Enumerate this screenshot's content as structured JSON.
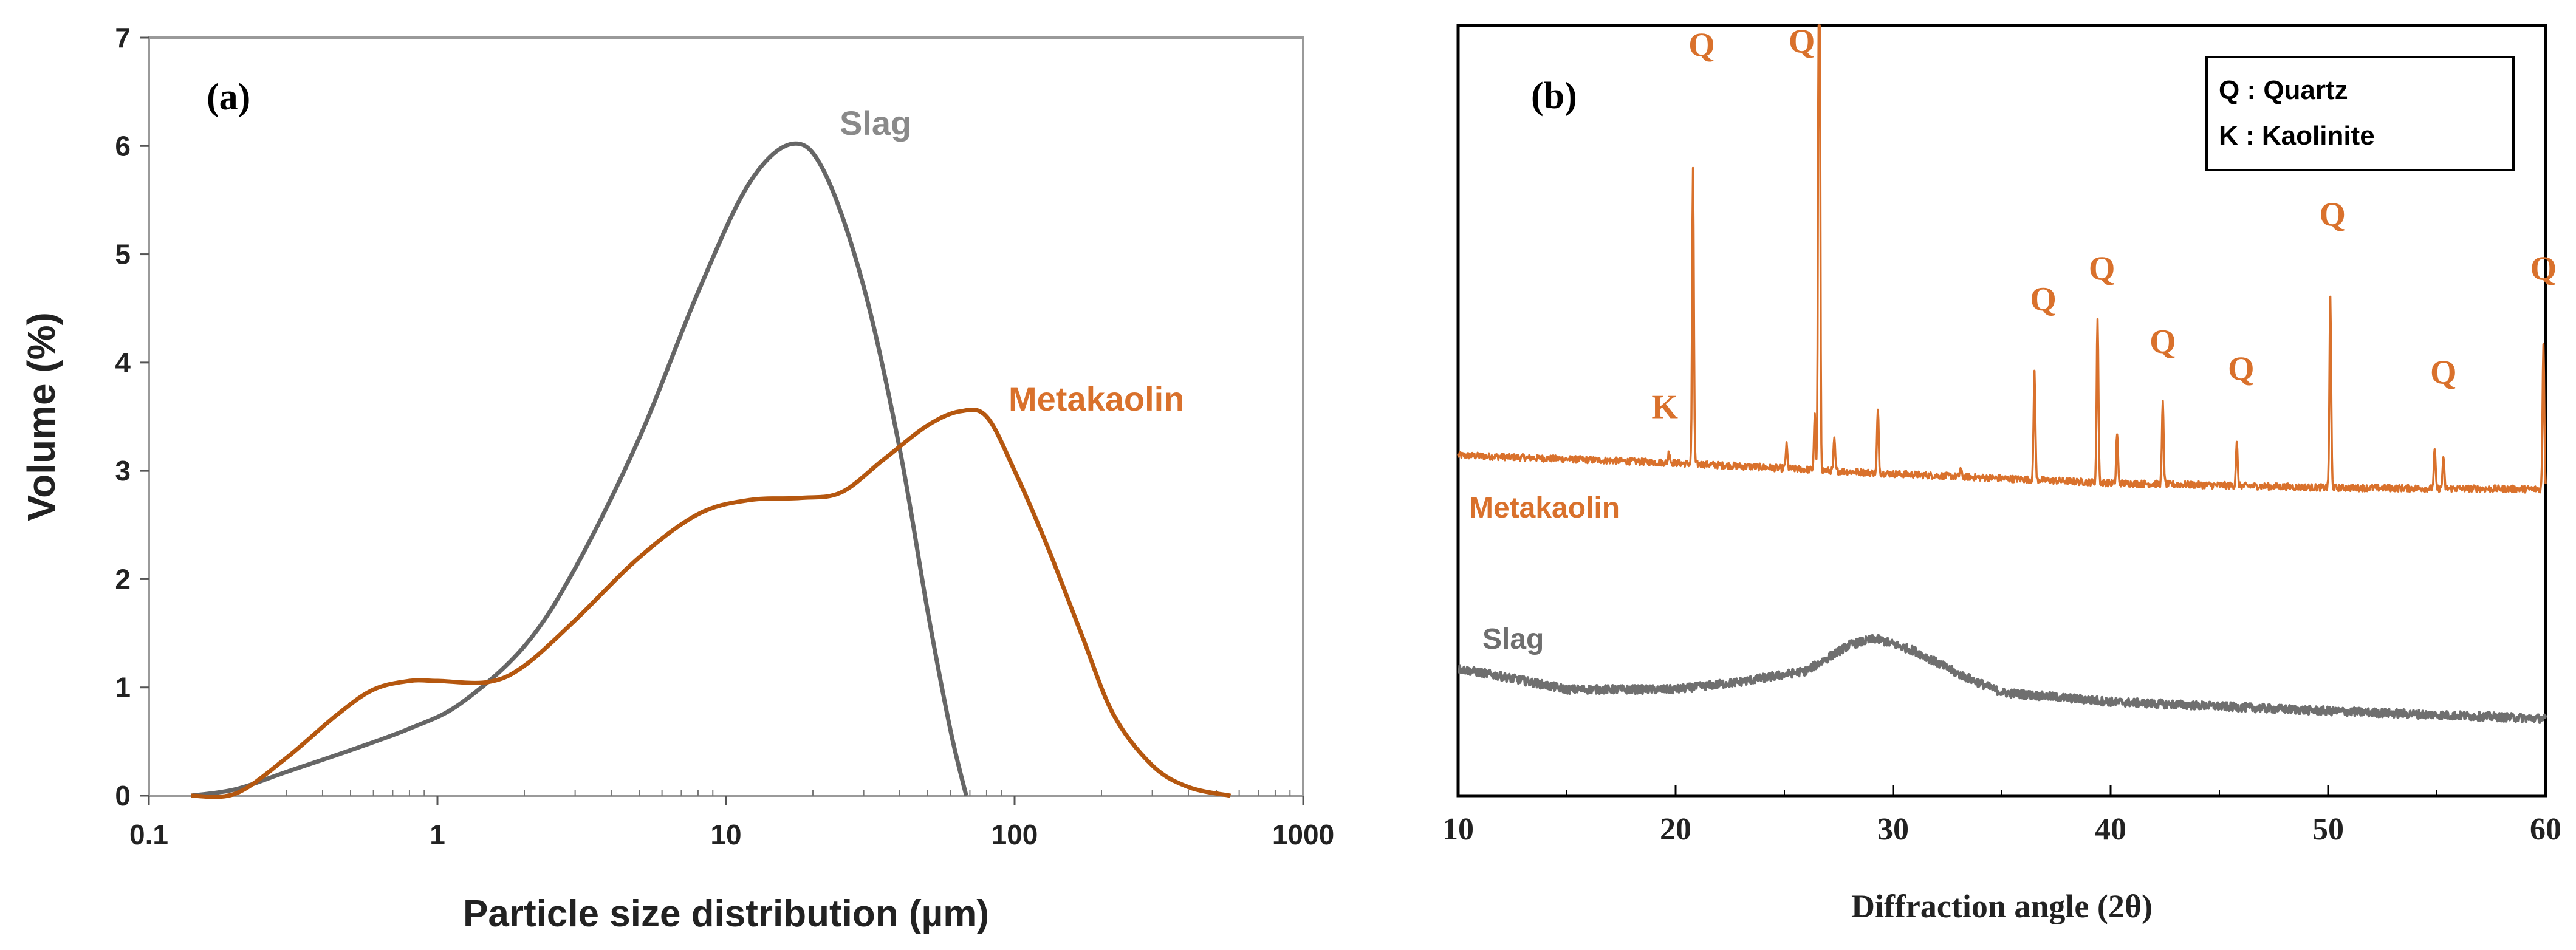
{
  "chart_data": [
    {
      "type": "line",
      "panel_label": "(a)",
      "xlabel": "Particle size distribution (µm)",
      "ylabel": "Volume (%)",
      "xscale": "log",
      "xlim": [
        0.1,
        1000
      ],
      "ylim": [
        0,
        7
      ],
      "x_ticks": [
        0.1,
        1,
        10,
        100,
        1000
      ],
      "x_tick_labels": [
        "0.1",
        "1",
        "10",
        "100",
        "1000"
      ],
      "y_ticks": [
        0,
        1,
        2,
        3,
        4,
        5,
        6,
        7
      ],
      "y_tick_labels": [
        "0",
        "1",
        "2",
        "3",
        "4",
        "5",
        "6",
        "7"
      ],
      "grid": false,
      "colors": {
        "Slag": "#666666",
        "Metakaolin": "#b5570f",
        "Slag_label": "#8a8a8a",
        "Metakaolin_label": "#d9712c"
      },
      "series": [
        {
          "name": "Slag",
          "x": [
            0.14,
            0.2,
            0.3,
            0.5,
            0.8,
            1.2,
            2,
            3,
            5,
            8,
            12,
            17,
            22,
            30,
            40,
            50,
            60,
            68
          ],
          "y": [
            0,
            0.06,
            0.22,
            0.42,
            0.62,
            0.85,
            1.38,
            2.1,
            3.3,
            4.65,
            5.65,
            6.02,
            5.75,
            4.7,
            3.2,
            1.7,
            0.6,
            0
          ]
        },
        {
          "name": "Metakaolin",
          "x": [
            0.14,
            0.2,
            0.3,
            0.45,
            0.6,
            0.8,
            1.0,
            1.5,
            2,
            3,
            5,
            8,
            12,
            18,
            25,
            35,
            50,
            65,
            80,
            100,
            130,
            170,
            220,
            300,
            400,
            560
          ],
          "y": [
            0,
            0.02,
            0.35,
            0.75,
            0.98,
            1.06,
            1.06,
            1.05,
            1.2,
            1.62,
            2.2,
            2.6,
            2.73,
            2.75,
            2.8,
            3.1,
            3.42,
            3.55,
            3.5,
            3.0,
            2.3,
            1.5,
            0.75,
            0.28,
            0.08,
            0
          ]
        }
      ],
      "annotations": [
        "Slag",
        "Metakaolin"
      ]
    },
    {
      "type": "line",
      "panel_label": "(b)",
      "xlabel": "Diffraction angle (2θ)",
      "ylabel": "",
      "xlim": [
        10,
        60
      ],
      "x_ticks": [
        10,
        20,
        30,
        40,
        50,
        60
      ],
      "x_tick_labels": [
        "10",
        "20",
        "30",
        "40",
        "50",
        "60"
      ],
      "y_units": "relative intensity (no axis labels)",
      "ylim": [
        0,
        100
      ],
      "grid": false,
      "legend": {
        "position": "top-right",
        "lines": [
          "Q : Quartz",
          "K : Kaolinite"
        ]
      },
      "colors": {
        "Metakaolin": "#d9712c",
        "Slag": "#6f6f6f"
      },
      "series": [
        {
          "name": "Metakaolin",
          "baseline": [
            [
              10,
              44.2
            ],
            [
              20,
              43.2
            ],
            [
              30,
              41.8
            ],
            [
              40,
              40.6
            ],
            [
              50,
              40.0
            ],
            [
              60,
              39.8
            ]
          ],
          "peaks": [
            [
              19.7,
              1.5
            ],
            [
              20.8,
              38
            ],
            [
              25.1,
              3
            ],
            [
              26.4,
              7
            ],
            [
              26.6,
              100
            ],
            [
              27.3,
              4
            ],
            [
              29.3,
              8
            ],
            [
              33.1,
              1
            ],
            [
              36.5,
              14
            ],
            [
              39.4,
              21.5
            ],
            [
              40.3,
              6.5
            ],
            [
              42.4,
              10.5
            ],
            [
              45.8,
              5.5
            ],
            [
              50.1,
              24.5
            ],
            [
              54.9,
              5
            ],
            [
              55.3,
              4
            ],
            [
              59.9,
              19
            ]
          ]
        },
        {
          "name": "Slag",
          "baseline": [
            [
              10,
              16.5
            ],
            [
              12,
              15.5
            ],
            [
              15,
              13.8
            ],
            [
              20,
              13.8
            ],
            [
              23,
              14.8
            ],
            [
              26,
              16.2
            ],
            [
              28,
              19.6
            ],
            [
              29.2,
              20.4
            ],
            [
              31,
              18.8
            ],
            [
              33,
              15.8
            ],
            [
              35,
              13.4
            ],
            [
              40,
              12.2
            ],
            [
              45,
              11.6
            ],
            [
              50,
              11.0
            ],
            [
              55,
              10.5
            ],
            [
              60,
              10.0
            ]
          ]
        }
      ],
      "peak_labels": [
        {
          "text": "K",
          "x": 19.5,
          "y": 49
        },
        {
          "text": "Q",
          "x": 21.2,
          "y": 96
        },
        {
          "text": "Q",
          "x": 25.8,
          "y": 96.5
        },
        {
          "text": "Q",
          "x": 36.9,
          "y": 63
        },
        {
          "text": "Q",
          "x": 39.6,
          "y": 67
        },
        {
          "text": "Q",
          "x": 42.4,
          "y": 57.5
        },
        {
          "text": "Q",
          "x": 46.0,
          "y": 54
        },
        {
          "text": "Q",
          "x": 50.2,
          "y": 74
        },
        {
          "text": "Q",
          "x": 55.3,
          "y": 53.5
        },
        {
          "text": "Q",
          "x": 59.9,
          "y": 67
        }
      ],
      "annotations": [
        "Metakaolin",
        "Slag"
      ]
    }
  ]
}
